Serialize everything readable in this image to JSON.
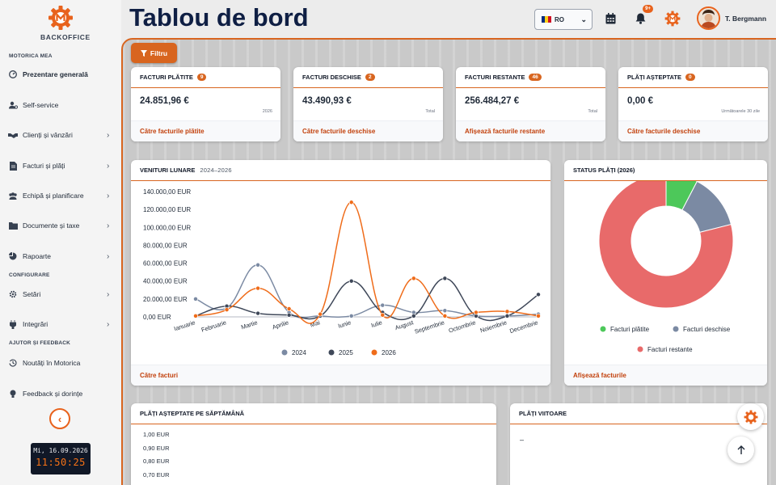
{
  "brand": {
    "name": "BACKOFFICE"
  },
  "page": {
    "title": "Tablou de bord"
  },
  "header": {
    "language": "RO",
    "notifications_badge": "9+",
    "user_name": "T. Bergmann"
  },
  "sidebar": {
    "section_main": "MOTORICA MEA",
    "section_config": "CONFIGURARE",
    "section_help": "AJUTOR ȘI FEEDBACK",
    "items": [
      {
        "label": "Prezentare generală",
        "icon": "dashboard-icon"
      },
      {
        "label": "Self-service",
        "icon": "user-gear-icon"
      },
      {
        "label": "Clienți și vânzări",
        "icon": "handshake-icon"
      },
      {
        "label": "Facturi și plăți",
        "icon": "invoice-icon"
      },
      {
        "label": "Echipă și planificare",
        "icon": "team-icon"
      },
      {
        "label": "Documente și taxe",
        "icon": "folder-icon"
      },
      {
        "label": "Rapoarte",
        "icon": "pie-chart-icon"
      },
      {
        "label": "Setări",
        "icon": "gear-icon"
      },
      {
        "label": "Integrări",
        "icon": "plug-icon"
      },
      {
        "label": "Noutăți în Motorica",
        "icon": "history-icon"
      },
      {
        "label": "Feedback și dorințe",
        "icon": "lightbulb-icon"
      }
    ],
    "clock_date": "Mi, 16.09.2026",
    "clock_time": "11:50:25"
  },
  "filter": {
    "label": "Filtru"
  },
  "kpis": [
    {
      "title": "FACTURI PLĂTITE",
      "count": "9",
      "value": "24.851,96 €",
      "note": "2026",
      "link": "Către facturile plătite"
    },
    {
      "title": "FACTURI DESCHISE",
      "count": "2",
      "value": "43.490,93 €",
      "note": "Total",
      "link": "Către facturile deschise"
    },
    {
      "title": "FACTURI RESTANTE",
      "count": "46",
      "value": "256.484,27 €",
      "note": "Total",
      "link": "Afișează facturile restante"
    },
    {
      "title": "PLĂȚI AȘTEPTATE",
      "count": "0",
      "value": "0,00 €",
      "note": "Următoarele 30 zile",
      "link": "Către facturile deschise"
    }
  ],
  "revenue_card": {
    "title": "VENITURI LUNARE",
    "subtitle": "2024–2026",
    "link": "Către facturi"
  },
  "status_card": {
    "title": "STATUS PLĂȚI (2026)",
    "link": "Afișează facturile"
  },
  "weekly_card": {
    "title": "PLĂȚI AȘTEPTATE PE SĂPTĂMÂNĂ"
  },
  "upcoming_card": {
    "title": "PLĂȚI VIITOARE",
    "empty": "–"
  },
  "colors": {
    "accent": "#d8651f",
    "s2024": "#7b8aa3",
    "s2025": "#3f4859",
    "s2026": "#ef6c1a",
    "paid": "#4dc85a",
    "open": "#7b8aa3",
    "overdue": "#e86a6a"
  },
  "chart_data": [
    {
      "type": "line",
      "title": "VENITURI LUNARE",
      "categories": [
        "Ianuarie",
        "Februarie",
        "Martie",
        "Aprilie",
        "Mai",
        "Iunie",
        "Iulie",
        "August",
        "Septembrie",
        "Octombrie",
        "Noiembrie",
        "Decembrie"
      ],
      "ylim": [
        0,
        140000
      ],
      "yticks": [
        "140.000,00 EUR",
        "120.000,00 EUR",
        "100.000,00 EUR",
        "80.000,00 EUR",
        "60.000,00 EUR",
        "40.000,00 EUR",
        "20.000,00 EUR",
        "0,00 EUR"
      ],
      "series": [
        {
          "name": "2024",
          "color": "#7b8aa3",
          "values": [
            20000,
            10000,
            58000,
            5000,
            1000,
            1000,
            13000,
            5000,
            7000,
            1000,
            1000,
            3000
          ]
        },
        {
          "name": "2025",
          "color": "#3f4859",
          "values": [
            1000,
            12000,
            4000,
            2000,
            1000,
            40000,
            5000,
            1000,
            43000,
            1000,
            1000,
            25000
          ]
        },
        {
          "name": "2026",
          "color": "#ef6c1a",
          "values": [
            1000,
            8000,
            32000,
            9000,
            3000,
            128000,
            2000,
            43000,
            1000,
            5000,
            6000,
            1000
          ]
        }
      ],
      "legend": "bottom",
      "grid": false
    },
    {
      "type": "pie",
      "title": "STATUS PLĂȚI (2026)",
      "labels": [
        "Facturi plătite",
        "Facturi deschise",
        "Facturi restante"
      ],
      "values": [
        24851.96,
        43490.93,
        256484.27
      ],
      "colors": [
        "#4dc85a",
        "#7b8aa3",
        "#e86a6a"
      ],
      "legend": "bottom"
    },
    {
      "type": "bar",
      "title": "PLĂȚI AȘTEPTATE PE SĂPTĂMÂNĂ",
      "yticks": [
        "1,00 EUR",
        "0,90 EUR",
        "0,80 EUR",
        "0,70 EUR"
      ],
      "values": []
    }
  ]
}
